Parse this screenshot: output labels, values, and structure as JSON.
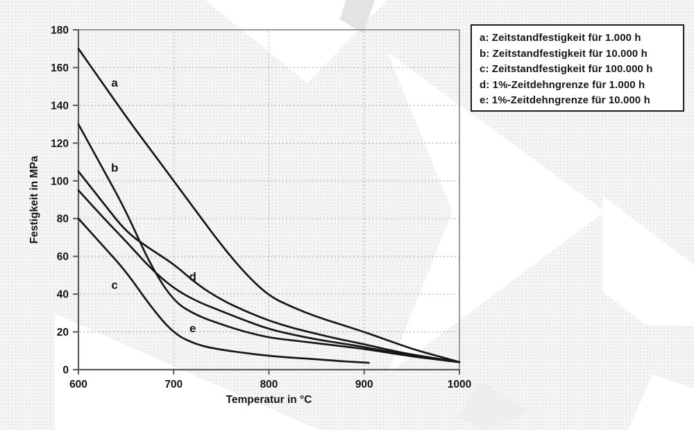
{
  "chart_data": {
    "type": "line",
    "title": "",
    "xlabel": "Temperatur in °C",
    "ylabel": "Festigkeit in MPa",
    "xlim": [
      600,
      1000
    ],
    "ylim": [
      0,
      180
    ],
    "x_ticks": [
      600,
      700,
      800,
      900,
      1000
    ],
    "y_ticks": [
      0,
      20,
      40,
      60,
      80,
      100,
      120,
      140,
      160,
      180
    ],
    "grid": "dashed, horizontal every 20 MPa, vertical at 700/800/900 °C",
    "legend_position": "top-right, outside plot",
    "series": [
      {
        "name": "a",
        "points": [
          [
            600,
            170
          ],
          [
            625,
            152
          ],
          [
            650,
            134
          ],
          [
            675,
            117
          ],
          [
            700,
            100
          ],
          [
            725,
            83
          ],
          [
            750,
            66
          ],
          [
            775,
            51
          ],
          [
            800,
            39
          ],
          [
            825,
            33
          ],
          [
            850,
            28
          ],
          [
            875,
            24
          ],
          [
            900,
            20
          ],
          [
            925,
            15.5
          ],
          [
            950,
            11
          ],
          [
            975,
            7.5
          ],
          [
            1000,
            4
          ]
        ]
      },
      {
        "name": "b",
        "points": [
          [
            600,
            130
          ],
          [
            625,
            107
          ],
          [
            650,
            84
          ],
          [
            675,
            56
          ],
          [
            700,
            36
          ],
          [
            725,
            28.5
          ],
          [
            750,
            24
          ],
          [
            775,
            20
          ],
          [
            800,
            17
          ],
          [
            825,
            15.5
          ],
          [
            850,
            14
          ],
          [
            875,
            12.5
          ],
          [
            900,
            11
          ],
          [
            925,
            9
          ],
          [
            950,
            7
          ],
          [
            975,
            5.5
          ],
          [
            1000,
            4
          ]
        ]
      },
      {
        "name": "c",
        "points": [
          [
            600,
            80
          ],
          [
            625,
            66
          ],
          [
            650,
            52
          ],
          [
            675,
            34
          ],
          [
            700,
            19
          ],
          [
            725,
            13
          ],
          [
            750,
            10.5
          ],
          [
            775,
            8.8
          ],
          [
            800,
            7.3
          ],
          [
            825,
            6.3
          ],
          [
            850,
            5.5
          ],
          [
            875,
            4.5
          ],
          [
            900,
            3.8
          ],
          [
            905,
            3.6
          ]
        ]
      },
      {
        "name": "d",
        "points": [
          [
            600,
            105
          ],
          [
            625,
            89
          ],
          [
            650,
            73
          ],
          [
            675,
            64
          ],
          [
            700,
            56
          ],
          [
            725,
            45
          ],
          [
            750,
            37
          ],
          [
            775,
            31
          ],
          [
            800,
            26
          ],
          [
            825,
            22
          ],
          [
            850,
            19
          ],
          [
            875,
            16
          ],
          [
            900,
            13.5
          ],
          [
            925,
            10.5
          ],
          [
            950,
            8
          ],
          [
            975,
            6
          ],
          [
            1000,
            4
          ]
        ]
      },
      {
        "name": "e",
        "points": [
          [
            600,
            95
          ],
          [
            625,
            81
          ],
          [
            650,
            68
          ],
          [
            675,
            54
          ],
          [
            700,
            43
          ],
          [
            725,
            36
          ],
          [
            750,
            31
          ],
          [
            775,
            26
          ],
          [
            800,
            21.5
          ],
          [
            825,
            18.5
          ],
          [
            850,
            16
          ],
          [
            875,
            14
          ],
          [
            900,
            12
          ],
          [
            925,
            9.5
          ],
          [
            950,
            7.5
          ],
          [
            975,
            5.5
          ],
          [
            1000,
            4
          ]
        ]
      }
    ],
    "curve_labels": [
      {
        "text": "a",
        "T": 638,
        "v": 152
      },
      {
        "text": "b",
        "T": 638,
        "v": 107
      },
      {
        "text": "c",
        "T": 638,
        "v": 45
      },
      {
        "text": "d",
        "T": 720,
        "v": 49.5
      },
      {
        "text": "e",
        "T": 720,
        "v": 22
      }
    ]
  },
  "legend": {
    "entries": [
      "a: Zeitstandfestigkeit für 1.000 h",
      "b: Zeitstandfestigkeit für 10.000 h",
      "c: Zeitstandfestigkeit für 100.000 h",
      "d: 1%-Zeitdehngrenze für 1.000 h",
      "e: 1%-Zeitdehngrenze für 10.000 h"
    ]
  },
  "colors": {
    "curve": "#161616",
    "frame": "#828282",
    "axis": "#5a5a5a",
    "grid": "#b2b2b2",
    "text": "#141414",
    "legend_border": "#1b1b1b",
    "background_speckle": "#f5f5f4",
    "watermark_white": "#ffffff",
    "watermark_gray": "#e3e3e1"
  }
}
